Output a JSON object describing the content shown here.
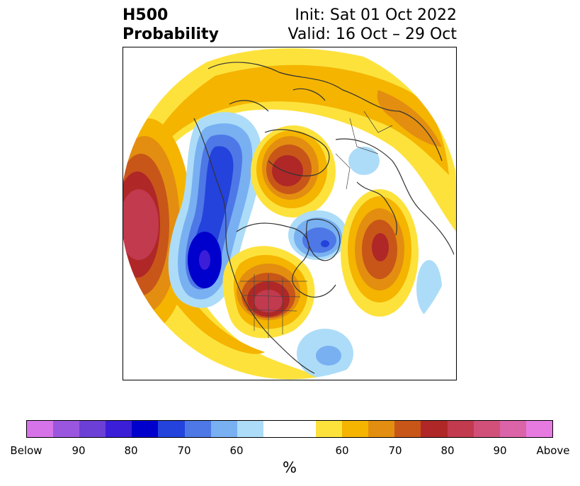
{
  "header": {
    "variable": "H500",
    "product": "Probability",
    "init": "Init: Sat 01 Oct 2022",
    "valid": "Valid: 16 Oct – 29 Oct"
  },
  "map": {
    "projection": "north-polar stereographic",
    "overlay": "coastlines and political borders",
    "anomalies": [
      {
        "name": "north-pacific-high",
        "category": "above",
        "peak": 90
      },
      {
        "name": "western-canada-low",
        "category": "below",
        "peak": 90
      },
      {
        "name": "central-us-high",
        "category": "above",
        "peak": 90
      },
      {
        "name": "greenland-low",
        "category": "below",
        "peak": 80
      },
      {
        "name": "north-atlantic-high",
        "category": "above",
        "peak": 80
      },
      {
        "name": "siberia-high",
        "category": "above",
        "peak": 80
      },
      {
        "name": "subtropical-atlantic-low",
        "category": "below",
        "peak": 70
      }
    ]
  },
  "colorbar": {
    "unit_label": "%",
    "colors": [
      "#d673e8",
      "#9b56e0",
      "#6c3fd6",
      "#3b1ed8",
      "#0000cc",
      "#2442dc",
      "#4e78e6",
      "#78b0f2",
      "#acdcf8",
      "#ffffff",
      "#ffffff",
      "#fde23c",
      "#f4b400",
      "#e38e10",
      "#c85619",
      "#b02727",
      "#c23a4e",
      "#d0507a",
      "#db63a8",
      "#e77ae0"
    ],
    "ticks": [
      "Below",
      "90",
      "80",
      "70",
      "60",
      "60",
      "70",
      "80",
      "90",
      "Above"
    ]
  }
}
